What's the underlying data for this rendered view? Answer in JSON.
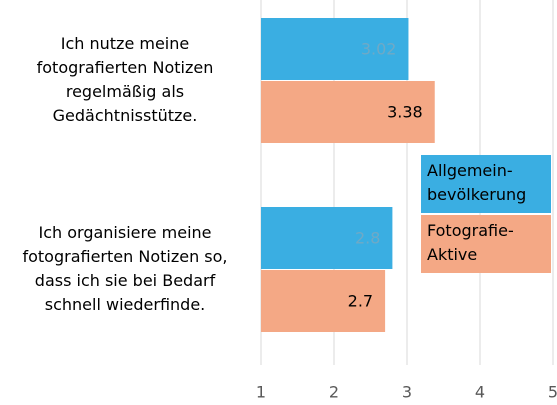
{
  "chart_data": {
    "type": "bar",
    "orientation": "horizontal",
    "categories": [
      "Ich nutze meine fotografierten Notizen regelmäßig als Gedächtnisstütze.",
      "Ich organisiere meine fotografierten Notizen so, dass ich sie bei Bedarf schnell wiederfinde."
    ],
    "series": [
      {
        "name": "Allgemein-bevölkerung",
        "color": "#3aaee2",
        "values": [
          3.02,
          2.8
        ]
      },
      {
        "name": "Fotografie-Aktive",
        "color": "#f4a885",
        "values": [
          3.38,
          2.7
        ]
      }
    ],
    "xlim": [
      1,
      5
    ],
    "xticks": [
      1,
      2,
      3,
      4,
      5
    ],
    "grid": true,
    "legend_position": "right"
  }
}
